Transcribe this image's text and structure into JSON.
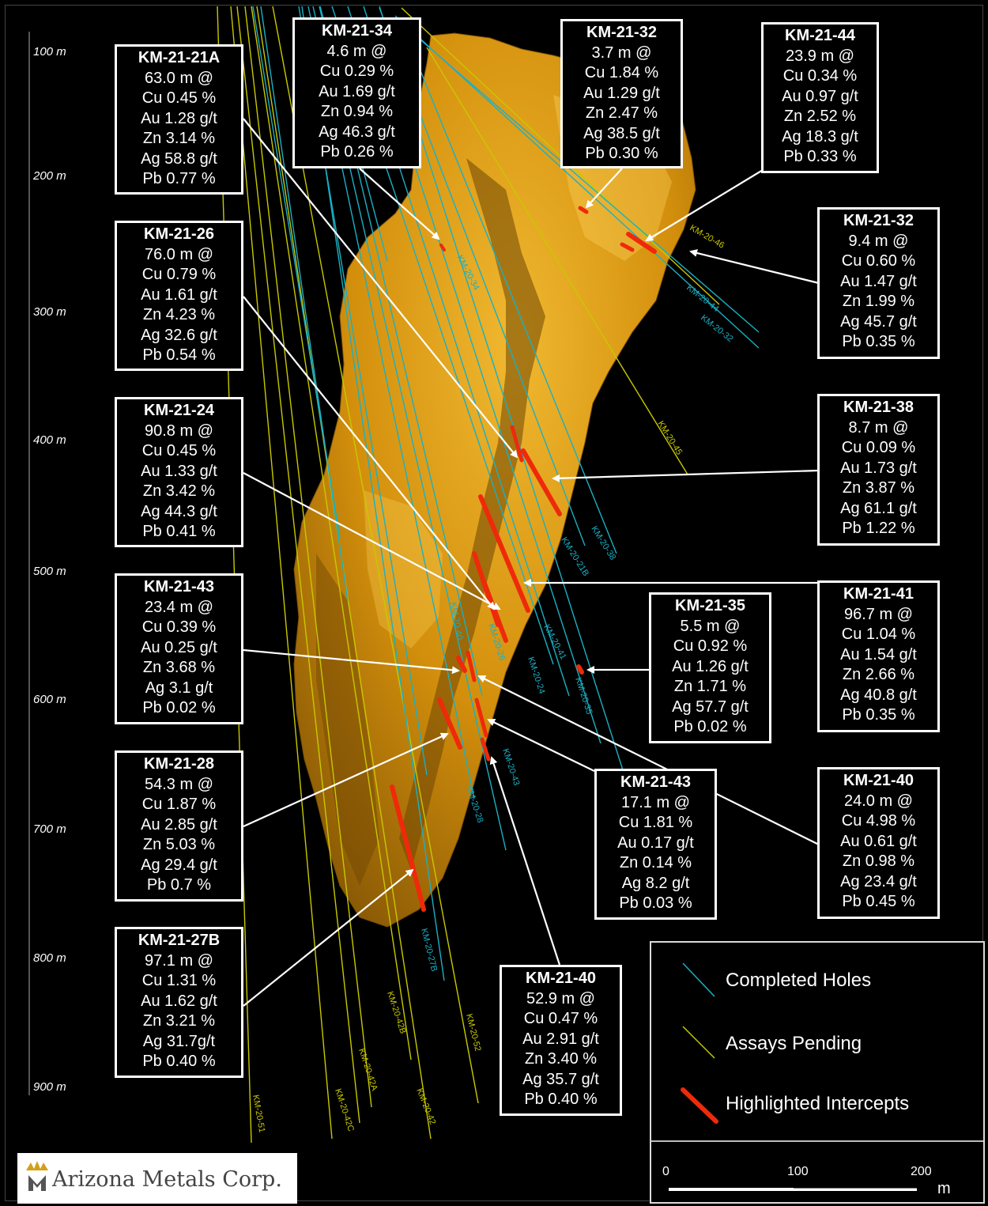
{
  "depth_axis": [
    "100 m",
    "200 m",
    "300 m",
    "400 m",
    "500 m",
    "600 m",
    "700 m",
    "800 m",
    "900 m"
  ],
  "colors": {
    "completed": "#1ab0c4",
    "pending": "#c8c800",
    "intercept": "#ee2a0a",
    "body": "#d99a10"
  },
  "hole_labels": [
    "KM-20-34",
    "KM-20-46",
    "KM-20-44",
    "KM-20-32",
    "KM-20-45",
    "KM-20-38",
    "KM-20-21B",
    "KM-20-26",
    "KM-20-40",
    "KM-20-41",
    "KM-20-35",
    "KM-20-24",
    "KM-20-43",
    "KM-20-28",
    "KM-20-27B",
    "KM-20-42B",
    "KM-20-52",
    "KM-20-42A",
    "KM-20-42C",
    "KM-20-42",
    "KM-20-51"
  ],
  "callouts": [
    {
      "title": "KM-21-21A",
      "lines": [
        "63.0 m @",
        "Cu 0.45 %",
        "Au 1.28 g/t",
        "Zn 3.14 %",
        "Ag 58.8 g/t",
        "Pb 0.77 %"
      ]
    },
    {
      "title": "KM-21-34",
      "lines": [
        "4.6 m @",
        "Cu 0.29 %",
        "Au 1.69 g/t",
        "Zn 0.94 %",
        "Ag 46.3 g/t",
        "Pb 0.26 %"
      ]
    },
    {
      "title": "KM-21-32",
      "lines": [
        "3.7 m @",
        "Cu 1.84 %",
        "Au 1.29 g/t",
        "Zn 2.47 %",
        "Ag 38.5 g/t",
        "Pb 0.30 %"
      ]
    },
    {
      "title": "KM-21-44",
      "lines": [
        "23.9 m @",
        "Cu 0.34 %",
        "Au 0.97 g/t",
        "Zn 2.52 %",
        "Ag 18.3 g/t",
        "Pb 0.33 %"
      ]
    },
    {
      "title": "KM-21-26",
      "lines": [
        "76.0 m @",
        "Cu 0.79 %",
        "Au 1.61 g/t",
        "Zn 4.23 %",
        "Ag 32.6 g/t",
        "Pb 0.54 %"
      ]
    },
    {
      "title": "KM-21-32",
      "lines": [
        "9.4 m @",
        "Cu 0.60 %",
        "Au 1.47 g/t",
        "Zn 1.99 %",
        "Ag 45.7 g/t",
        "Pb 0.35 %"
      ]
    },
    {
      "title": "KM-21-24",
      "lines": [
        "90.8 m @",
        "Cu 0.45 %",
        "Au 1.33 g/t",
        "Zn 3.42 %",
        "Ag 44.3 g/t",
        "Pb 0.41 %"
      ]
    },
    {
      "title": "KM-21-38",
      "lines": [
        "8.7 m @",
        "Cu 0.09 %",
        "Au 1.73 g/t",
        "Zn 3.87 %",
        "Ag 61.1 g/t",
        "Pb 1.22 %"
      ]
    },
    {
      "title": "KM-21-43",
      "lines": [
        "23.4 m @",
        "Cu 0.39 %",
        "Au 0.25 g/t",
        "Zn 3.68 %",
        "Ag 3.1 g/t",
        "Pb 0.02 %"
      ]
    },
    {
      "title": "KM-21-35",
      "lines": [
        "5.5 m @",
        "Cu 0.92 %",
        "Au 1.26 g/t",
        "Zn 1.71 %",
        "Ag 57.7 g/t",
        "Pb 0.02 %"
      ]
    },
    {
      "title": "KM-21-41",
      "lines": [
        "96.7 m @",
        "Cu 1.04 %",
        "Au 1.54 g/t",
        "Zn 2.66 %",
        "Ag 40.8 g/t",
        "Pb 0.35 %"
      ]
    },
    {
      "title": "KM-21-28",
      "lines": [
        "54.3 m @",
        "Cu 1.87 %",
        "Au 2.85 g/t",
        "Zn 5.03 %",
        "Ag 29.4 g/t",
        "Pb 0.7 %"
      ]
    },
    {
      "title": "KM-21-43",
      "lines": [
        "17.1 m @",
        "Cu 1.81 %",
        "Au 0.17 g/t",
        "Zn 0.14 %",
        "Ag 8.2 g/t",
        "Pb 0.03 %"
      ]
    },
    {
      "title": "KM-21-40",
      "lines": [
        "24.0 m @",
        "Cu 4.98 %",
        "Au 0.61 g/t",
        "Zn 0.98 %",
        "Ag 23.4 g/t",
        "Pb 0.45 %"
      ]
    },
    {
      "title": "KM-21-27B",
      "lines": [
        "97.1 m @",
        "Cu 1.31 %",
        "Au 1.62 g/t",
        "Zn 3.21 %",
        "Ag 31.7g/t",
        "Pb 0.40 %"
      ]
    },
    {
      "title": "KM-21-40",
      "lines": [
        "52.9 m @",
        "Cu 0.47 %",
        "Au 2.91 g/t",
        "Zn 3.40 %",
        "Ag 35.7 g/t",
        "Pb 0.40 %"
      ]
    }
  ],
  "legend": {
    "completed": "Completed Holes",
    "pending": "Assays Pending",
    "intercepts": "Highlighted Intercepts",
    "scale_ticks": [
      "0",
      "100",
      "200"
    ],
    "scale_unit": "m"
  },
  "logo": {
    "name": "Arizona Metals Corp.",
    "icon": "crown-icon"
  }
}
